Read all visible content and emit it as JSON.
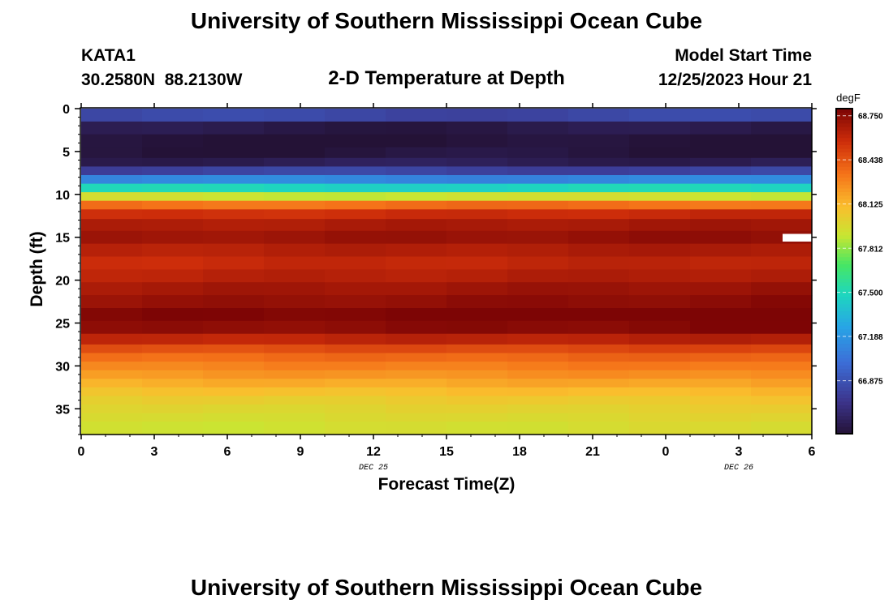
{
  "chart_data": {
    "type": "heatmap",
    "title": "University of Southern Mississippi Ocean Cube",
    "subtitle": "2-D Temperature at Depth",
    "station": {
      "name": "KATA1",
      "coords": "30.2580N  88.2130W"
    },
    "model_start": {
      "label": "Model Start Time",
      "value": "12/25/2023 Hour 21"
    },
    "xlabel": "Forecast Time(Z)",
    "ylabel": "Depth (ft)",
    "x_range_hours": [
      0,
      30
    ],
    "x_ticks": [
      {
        "hour": 0,
        "label": "0"
      },
      {
        "hour": 3,
        "label": "3"
      },
      {
        "hour": 6,
        "label": "6"
      },
      {
        "hour": 9,
        "label": "9"
      },
      {
        "hour": 12,
        "label": "12"
      },
      {
        "hour": 15,
        "label": "15"
      },
      {
        "hour": 18,
        "label": "18"
      },
      {
        "hour": 21,
        "label": "21"
      },
      {
        "hour": 24,
        "label": "0"
      },
      {
        "hour": 27,
        "label": "3"
      },
      {
        "hour": 30,
        "label": "6"
      }
    ],
    "date_labels": [
      {
        "hour": 12,
        "label": "DEC 25"
      },
      {
        "hour": 27,
        "label": "DEC 26"
      }
    ],
    "y_range_ft": [
      0,
      38
    ],
    "y_ticks": [
      0,
      5,
      10,
      15,
      20,
      25,
      30,
      35
    ],
    "colorbar": {
      "unit": "degF",
      "min": 66.5,
      "max": 68.8,
      "tick_values": [
        68.75,
        68.438,
        68.125,
        67.812,
        67.5,
        67.188,
        66.875
      ],
      "tick_labels": [
        "68.750",
        "68.438",
        "68.125",
        "67.812",
        "67.500",
        "67.188",
        "66.875"
      ]
    },
    "depth_profile_ft": [
      0.75,
      2.25,
      3.75,
      5.25,
      6.25,
      7.25,
      8.25,
      9.25,
      10.25,
      11.25,
      12.25,
      13.5,
      15,
      16.5,
      18,
      19.5,
      21,
      22.5,
      24,
      25.5,
      27,
      28,
      29,
      30,
      31,
      32,
      33,
      34,
      35,
      36,
      37
    ],
    "temp_profile_degF": [
      66.82,
      66.55,
      66.5,
      66.52,
      66.58,
      66.8,
      67.12,
      67.48,
      67.92,
      68.35,
      68.55,
      68.65,
      68.7,
      68.63,
      68.58,
      68.62,
      68.68,
      68.72,
      68.78,
      68.74,
      68.6,
      68.45,
      68.35,
      68.28,
      68.22,
      68.15,
      68.08,
      68.02,
      67.98,
      67.95,
      67.92
    ],
    "time_variation_note": "deep layer warms slightly toward later hours",
    "bottom_title": "University of Southern Mississippi Ocean Cube"
  }
}
